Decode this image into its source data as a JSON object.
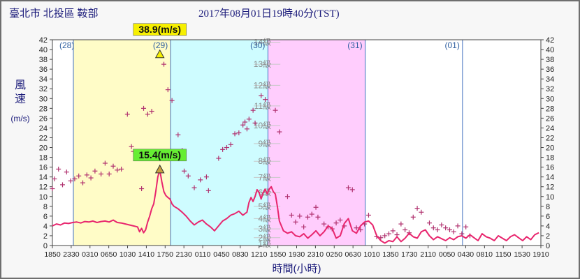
{
  "header": {
    "station": "臺北市 北投區 鞍部",
    "datetime": "2017年08月01日19時40分(TST)"
  },
  "colors": {
    "band1": "#fffcc7",
    "band2": "#cefcff",
    "band3": "#ffcdfd",
    "band4": "#ffffff",
    "wind_line": "#e8266e",
    "gust_marker": "#b0306e",
    "max_gust_label": "#f6ef00",
    "max_wind_label": "#66ee33",
    "title_text": "#1a1a7a"
  },
  "chart_data": {
    "type": "line",
    "ylabel_chars": [
      "風",
      "速"
    ],
    "yunit": "(m/s)",
    "xlabel": "時間(小時)",
    "ylim": [
      0,
      42
    ],
    "yticks": [
      0,
      2,
      4,
      6,
      8,
      10,
      12,
      14,
      16,
      18,
      20,
      22,
      24,
      26,
      28,
      30,
      32,
      34,
      36,
      38,
      40,
      42
    ],
    "beaufort_labels": [
      "1級",
      "2級",
      "3級",
      "4級",
      "5級",
      "6級",
      "7級",
      "8級",
      "9級",
      "10級",
      "11級",
      "12級",
      "13級",
      "14級"
    ],
    "beaufort_thresholds": [
      0.3,
      1.6,
      3.4,
      5.5,
      8.0,
      10.8,
      13.9,
      17.2,
      20.8,
      24.5,
      28.5,
      32.7,
      37.0,
      41.5
    ],
    "xticks": [
      "1850",
      "2330",
      "0310",
      "0650",
      "1030",
      "1410",
      "1750",
      "2130",
      "0110",
      "0450",
      "0830",
      "1210",
      "1550",
      "1930",
      "2310",
      "0250",
      "0630",
      "1010",
      "1350",
      "1730",
      "2110",
      "0050",
      "0430",
      "0810",
      "1150",
      "1530",
      "1910"
    ],
    "x_range_hours": [
      0,
      120.5
    ],
    "day_labels": [
      {
        "label": "(28)",
        "hour": 0
      },
      {
        "label": "(29)",
        "hour": 29.2
      },
      {
        "label": "(30)",
        "hour": 53.2
      },
      {
        "label": "(31)",
        "hour": 77.2
      },
      {
        "label": "(01)",
        "hour": 101.2
      }
    ],
    "day_boundaries_hours": [
      5.17,
      29.17,
      53.17,
      77.17,
      101.17
    ],
    "max_gust": {
      "label": "38.9(m/s)",
      "value": 38.9,
      "hour": 26.5
    },
    "max_wind": {
      "label": "15.4(m/s)",
      "value": 15.4,
      "hour": 26.5
    },
    "series": [
      {
        "kind": "mean_wind",
        "points": [
          [
            0,
            4.0
          ],
          [
            1,
            4.4
          ],
          [
            2,
            4.2
          ],
          [
            3,
            4.6
          ],
          [
            4,
            4.5
          ],
          [
            5,
            4.7
          ],
          [
            6,
            4.8
          ],
          [
            7,
            4.6
          ],
          [
            8,
            4.9
          ],
          [
            9,
            4.8
          ],
          [
            10,
            5.0
          ],
          [
            11,
            4.7
          ],
          [
            12,
            4.9
          ],
          [
            13,
            5.0
          ],
          [
            14,
            4.8
          ],
          [
            15,
            5.2
          ],
          [
            16,
            4.7
          ],
          [
            17,
            4.6
          ],
          [
            18,
            4.4
          ],
          [
            19,
            4.2
          ],
          [
            20,
            4.0
          ],
          [
            21,
            3.8
          ],
          [
            21.5,
            2.8
          ],
          [
            22,
            3.5
          ],
          [
            22.5,
            2.6
          ],
          [
            23,
            3.2
          ],
          [
            23.5,
            4.8
          ],
          [
            24,
            6.0
          ],
          [
            24.5,
            7.5
          ],
          [
            25,
            8.5
          ],
          [
            25.5,
            11.0
          ],
          [
            26,
            14.0
          ],
          [
            26.5,
            15.4
          ],
          [
            27,
            13.0
          ],
          [
            27.5,
            11.0
          ],
          [
            28,
            10.2
          ],
          [
            28.5,
            9.8
          ],
          [
            29,
            9.5
          ],
          [
            29.5,
            8.5
          ],
          [
            30,
            8.0
          ],
          [
            31,
            7.5
          ],
          [
            32,
            6.8
          ],
          [
            33,
            6.0
          ],
          [
            34,
            5.0
          ],
          [
            35,
            4.2
          ],
          [
            36,
            4.8
          ],
          [
            37,
            5.2
          ],
          [
            38,
            4.4
          ],
          [
            39,
            3.8
          ],
          [
            40,
            3.0
          ],
          [
            41,
            4.0
          ],
          [
            42,
            5.0
          ],
          [
            43,
            5.5
          ],
          [
            44,
            6.2
          ],
          [
            45,
            6.5
          ],
          [
            46,
            7.0
          ],
          [
            47,
            6.2
          ],
          [
            48,
            6.8
          ],
          [
            48.5,
            8.8
          ],
          [
            49,
            9.8
          ],
          [
            49.5,
            9.0
          ],
          [
            50,
            10.0
          ],
          [
            50.5,
            11.4
          ],
          [
            51,
            10.8
          ],
          [
            51.5,
            9.5
          ],
          [
            52,
            10.8
          ],
          [
            52.5,
            11.5
          ],
          [
            53,
            10.5
          ],
          [
            53.5,
            11.5
          ],
          [
            54,
            12.0
          ],
          [
            54.5,
            11.0
          ],
          [
            55,
            10.5
          ],
          [
            55.5,
            8.0
          ],
          [
            56,
            5.0
          ],
          [
            57,
            3.0
          ],
          [
            58,
            2.5
          ],
          [
            59,
            2.8
          ],
          [
            60,
            2.0
          ],
          [
            61,
            1.8
          ],
          [
            62,
            2.4
          ],
          [
            63,
            1.5
          ],
          [
            64,
            2.2
          ],
          [
            65,
            3.0
          ],
          [
            66,
            2.0
          ],
          [
            67,
            2.8
          ],
          [
            68,
            4.0
          ],
          [
            69,
            3.5
          ],
          [
            70,
            1.5
          ],
          [
            71,
            2.0
          ],
          [
            72,
            4.5
          ],
          [
            73,
            5.5
          ],
          [
            74,
            3.0
          ],
          [
            75,
            2.5
          ],
          [
            76,
            4.0
          ],
          [
            77,
            4.8
          ],
          [
            78,
            5.0
          ],
          [
            79,
            4.2
          ],
          [
            80,
            2.0
          ],
          [
            81,
            1.0
          ],
          [
            82,
            0.5
          ],
          [
            83,
            1.0
          ],
          [
            84,
            0.8
          ],
          [
            85,
            1.8
          ],
          [
            86,
            0.8
          ],
          [
            87,
            1.5
          ],
          [
            88,
            2.5
          ],
          [
            89,
            1.8
          ],
          [
            90,
            1.5
          ],
          [
            91,
            2.8
          ],
          [
            92,
            3.2
          ],
          [
            93,
            2.0
          ],
          [
            94,
            1.2
          ],
          [
            95,
            1.8
          ],
          [
            96,
            1.4
          ],
          [
            97,
            1.0
          ],
          [
            98,
            1.6
          ],
          [
            99,
            1.2
          ],
          [
            100,
            1.8
          ],
          [
            101,
            2.0
          ],
          [
            102,
            1.5
          ],
          [
            103,
            2.2
          ],
          [
            104,
            1.6
          ],
          [
            105,
            1.0
          ],
          [
            106,
            2.4
          ],
          [
            107,
            1.8
          ],
          [
            108,
            1.5
          ],
          [
            109,
            1.0
          ],
          [
            110,
            2.0
          ],
          [
            111,
            1.5
          ],
          [
            112,
            1.0
          ],
          [
            113,
            1.8
          ],
          [
            114,
            2.2
          ],
          [
            115,
            1.6
          ],
          [
            116,
            1.0
          ],
          [
            117,
            1.8
          ],
          [
            118,
            1.2
          ],
          [
            119,
            2.2
          ],
          [
            120,
            2.6
          ]
        ]
      },
      {
        "kind": "gust",
        "points": [
          [
            0,
            11.6
          ],
          [
            0.5,
            13.6
          ],
          [
            1.5,
            15.6
          ],
          [
            2.5,
            12.4
          ],
          [
            3.5,
            15.0
          ],
          [
            4.5,
            13.2
          ],
          [
            5.5,
            13.6
          ],
          [
            6.5,
            14.2
          ],
          [
            7.5,
            12.8
          ],
          [
            8.5,
            14.4
          ],
          [
            9.5,
            13.8
          ],
          [
            10.5,
            15.2
          ],
          [
            12,
            14.6
          ],
          [
            13,
            16.8
          ],
          [
            14,
            14.6
          ],
          [
            15,
            16.2
          ],
          [
            16,
            15.4
          ],
          [
            17,
            15.6
          ],
          [
            18.5,
            26.8
          ],
          [
            19.5,
            20.2
          ],
          [
            20,
            19.2
          ],
          [
            22,
            11.6
          ],
          [
            22.5,
            28.0
          ],
          [
            23.5,
            26.8
          ],
          [
            24.5,
            27.4
          ],
          [
            26.5,
            38.9
          ],
          [
            27.5,
            37.0
          ],
          [
            28.5,
            31.8
          ],
          [
            29.5,
            29.6
          ],
          [
            31,
            22.6
          ],
          [
            32,
            19.4
          ],
          [
            32.5,
            15.2
          ],
          [
            33.5,
            14.2
          ],
          [
            35,
            11.8
          ],
          [
            36.5,
            13.4
          ],
          [
            38,
            14.0
          ],
          [
            38.5,
            11.2
          ],
          [
            41,
            17.8
          ],
          [
            42,
            19.6
          ],
          [
            43,
            20.0
          ],
          [
            44,
            20.6
          ],
          [
            45,
            22.8
          ],
          [
            46,
            23.0
          ],
          [
            47,
            24.6
          ],
          [
            47.5,
            25.2
          ],
          [
            48,
            23.8
          ],
          [
            48.5,
            25.8
          ],
          [
            49.5,
            27.6
          ],
          [
            50,
            25.0
          ],
          [
            51.5,
            30.6
          ],
          [
            52.5,
            29.8
          ],
          [
            55,
            27.6
          ],
          [
            56,
            23.2
          ],
          [
            58,
            10.0
          ],
          [
            59,
            6.2
          ],
          [
            60,
            4.8
          ],
          [
            61,
            6.0
          ],
          [
            62,
            3.8
          ],
          [
            63,
            5.8
          ],
          [
            64,
            6.4
          ],
          [
            65,
            7.8
          ],
          [
            65.5,
            5.8
          ],
          [
            67,
            4.4
          ],
          [
            68,
            3.8
          ],
          [
            69,
            3.4
          ],
          [
            70,
            4.6
          ],
          [
            71,
            5.2
          ],
          [
            72,
            4.0
          ],
          [
            73,
            11.8
          ],
          [
            74,
            11.4
          ],
          [
            75,
            3.6
          ],
          [
            76,
            3.2
          ],
          [
            77,
            4.4
          ],
          [
            78,
            6.2
          ],
          [
            80,
            1.8
          ],
          [
            81,
            1.6
          ],
          [
            82,
            2.0
          ],
          [
            83,
            2.4
          ],
          [
            84,
            3.0
          ],
          [
            85,
            2.2
          ],
          [
            86,
            4.4
          ],
          [
            87,
            3.2
          ],
          [
            88,
            2.6
          ],
          [
            89,
            5.8
          ],
          [
            90,
            7.6
          ],
          [
            91,
            6.8
          ],
          [
            93,
            4.6
          ],
          [
            94,
            3.6
          ],
          [
            95,
            3.2
          ],
          [
            96,
            4.2
          ],
          [
            97,
            3.6
          ],
          [
            98,
            3.2
          ],
          [
            99,
            2.8
          ],
          [
            100,
            4.0
          ],
          [
            101,
            2.4
          ],
          [
            102,
            3.8
          ],
          [
            103,
            2.0
          ]
        ]
      }
    ]
  }
}
